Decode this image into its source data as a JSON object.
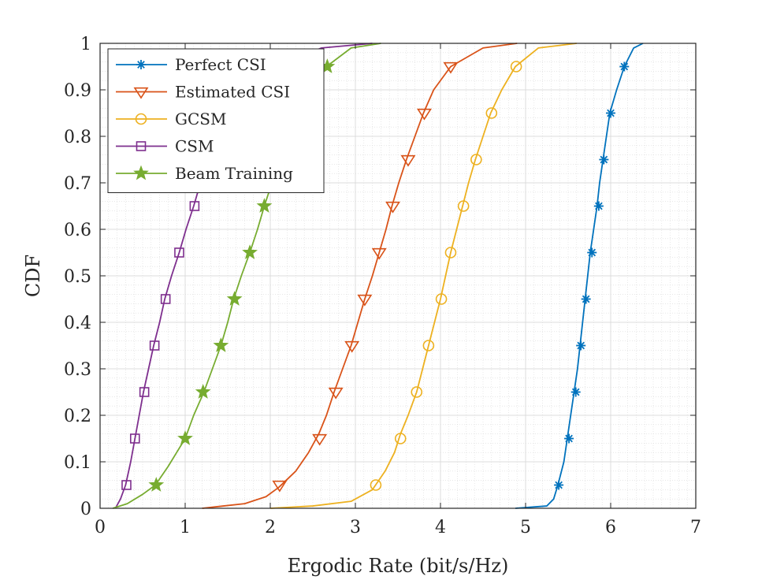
{
  "chart_data": {
    "type": "line",
    "title": "",
    "xlabel": "Ergodic Rate (bit/s/Hz)",
    "ylabel": "CDF",
    "xlim": [
      0,
      7
    ],
    "ylim": [
      0,
      1
    ],
    "x_ticks": [
      "0",
      "1",
      "2",
      "3",
      "4",
      "5",
      "6",
      "7"
    ],
    "y_ticks": [
      "0",
      "0.1",
      "0.2",
      "0.3",
      "0.4",
      "0.5",
      "0.6",
      "0.7",
      "0.8",
      "0.9",
      "1"
    ],
    "grid": true,
    "minor_grid": true,
    "legend_position": "top-left",
    "series": [
      {
        "name": "Perfect CSI",
        "color": "#0072BD",
        "marker": "asterisk",
        "points": [
          [
            4.88,
            0
          ],
          [
            5.25,
            0.005
          ],
          [
            5.33,
            0.02
          ],
          [
            5.38,
            0.05
          ],
          [
            5.45,
            0.1
          ],
          [
            5.49,
            0.15
          ],
          [
            5.53,
            0.2
          ],
          [
            5.57,
            0.25
          ],
          [
            5.61,
            0.3
          ],
          [
            5.64,
            0.35
          ],
          [
            5.67,
            0.4
          ],
          [
            5.7,
            0.45
          ],
          [
            5.73,
            0.5
          ],
          [
            5.76,
            0.55
          ],
          [
            5.8,
            0.6
          ],
          [
            5.84,
            0.65
          ],
          [
            5.87,
            0.7
          ],
          [
            5.91,
            0.75
          ],
          [
            5.95,
            0.8
          ],
          [
            5.99,
            0.85
          ],
          [
            6.07,
            0.9
          ],
          [
            6.16,
            0.95
          ],
          [
            6.27,
            0.99
          ],
          [
            6.38,
            1.0
          ]
        ],
        "markers": [
          [
            5.39,
            0.05
          ],
          [
            5.51,
            0.15
          ],
          [
            5.59,
            0.25
          ],
          [
            5.65,
            0.35
          ],
          [
            5.71,
            0.45
          ],
          [
            5.78,
            0.55
          ],
          [
            5.86,
            0.65
          ],
          [
            5.92,
            0.75
          ],
          [
            6.0,
            0.85
          ],
          [
            6.16,
            0.95
          ]
        ]
      },
      {
        "name": "Estimated CSI",
        "color": "#D95319",
        "marker": "triangle-down",
        "points": [
          [
            1.2,
            0
          ],
          [
            1.45,
            0.005
          ],
          [
            1.7,
            0.01
          ],
          [
            1.95,
            0.025
          ],
          [
            2.1,
            0.045
          ],
          [
            2.3,
            0.08
          ],
          [
            2.45,
            0.12
          ],
          [
            2.57,
            0.16
          ],
          [
            2.66,
            0.2
          ],
          [
            2.75,
            0.25
          ],
          [
            2.85,
            0.3
          ],
          [
            2.95,
            0.35
          ],
          [
            3.03,
            0.4
          ],
          [
            3.11,
            0.45
          ],
          [
            3.2,
            0.5
          ],
          [
            3.28,
            0.55
          ],
          [
            3.36,
            0.6
          ],
          [
            3.43,
            0.65
          ],
          [
            3.51,
            0.7
          ],
          [
            3.6,
            0.75
          ],
          [
            3.7,
            0.8
          ],
          [
            3.8,
            0.85
          ],
          [
            3.92,
            0.9
          ],
          [
            4.12,
            0.95
          ],
          [
            4.5,
            0.99
          ],
          [
            4.9,
            1.0
          ]
        ],
        "markers": [
          [
            2.11,
            0.05
          ],
          [
            2.58,
            0.15
          ],
          [
            2.77,
            0.25
          ],
          [
            2.96,
            0.35
          ],
          [
            3.11,
            0.45
          ],
          [
            3.28,
            0.55
          ],
          [
            3.44,
            0.65
          ],
          [
            3.62,
            0.75
          ],
          [
            3.81,
            0.85
          ],
          [
            4.12,
            0.95
          ]
        ]
      },
      {
        "name": "GCSM",
        "color": "#EDB120",
        "marker": "circle",
        "points": [
          [
            2.0,
            0
          ],
          [
            2.5,
            0.005
          ],
          [
            2.95,
            0.015
          ],
          [
            3.2,
            0.04
          ],
          [
            3.35,
            0.08
          ],
          [
            3.46,
            0.12
          ],
          [
            3.53,
            0.16
          ],
          [
            3.62,
            0.2
          ],
          [
            3.72,
            0.25
          ],
          [
            3.79,
            0.3
          ],
          [
            3.86,
            0.35
          ],
          [
            3.93,
            0.4
          ],
          [
            4.0,
            0.45
          ],
          [
            4.06,
            0.5
          ],
          [
            4.12,
            0.55
          ],
          [
            4.19,
            0.6
          ],
          [
            4.26,
            0.65
          ],
          [
            4.33,
            0.7
          ],
          [
            4.41,
            0.75
          ],
          [
            4.5,
            0.8
          ],
          [
            4.59,
            0.85
          ],
          [
            4.72,
            0.9
          ],
          [
            4.88,
            0.95
          ],
          [
            5.15,
            0.99
          ],
          [
            5.6,
            1.0
          ]
        ],
        "markers": [
          [
            3.24,
            0.05
          ],
          [
            3.53,
            0.15
          ],
          [
            3.72,
            0.25
          ],
          [
            3.86,
            0.35
          ],
          [
            4.01,
            0.45
          ],
          [
            4.12,
            0.55
          ],
          [
            4.27,
            0.65
          ],
          [
            4.42,
            0.75
          ],
          [
            4.6,
            0.85
          ],
          [
            4.89,
            0.95
          ]
        ]
      },
      {
        "name": "CSM",
        "color": "#7E2F8E",
        "marker": "square",
        "points": [
          [
            0.18,
            0
          ],
          [
            0.24,
            0.02
          ],
          [
            0.3,
            0.05
          ],
          [
            0.36,
            0.1
          ],
          [
            0.41,
            0.15
          ],
          [
            0.46,
            0.2
          ],
          [
            0.51,
            0.25
          ],
          [
            0.57,
            0.3
          ],
          [
            0.63,
            0.35
          ],
          [
            0.7,
            0.4
          ],
          [
            0.76,
            0.45
          ],
          [
            0.84,
            0.5
          ],
          [
            0.93,
            0.55
          ],
          [
            1.01,
            0.6
          ],
          [
            1.1,
            0.65
          ],
          [
            1.18,
            0.7
          ],
          [
            1.25,
            0.75
          ],
          [
            1.35,
            0.8
          ],
          [
            1.5,
            0.85
          ],
          [
            1.7,
            0.9
          ],
          [
            2.05,
            0.95
          ],
          [
            2.6,
            0.99
          ],
          [
            3.2,
            1.0
          ]
        ],
        "markers": [
          [
            0.31,
            0.05
          ],
          [
            0.41,
            0.15
          ],
          [
            0.52,
            0.25
          ],
          [
            0.64,
            0.35
          ],
          [
            0.77,
            0.45
          ],
          [
            0.93,
            0.55
          ],
          [
            1.11,
            0.65
          ]
        ]
      },
      {
        "name": "Beam Training",
        "color": "#77AC30",
        "marker": "pentagram",
        "points": [
          [
            0.15,
            0
          ],
          [
            0.32,
            0.01
          ],
          [
            0.5,
            0.03
          ],
          [
            0.65,
            0.05
          ],
          [
            0.8,
            0.09
          ],
          [
            0.9,
            0.12
          ],
          [
            1.0,
            0.15
          ],
          [
            1.1,
            0.2
          ],
          [
            1.22,
            0.25
          ],
          [
            1.32,
            0.3
          ],
          [
            1.42,
            0.35
          ],
          [
            1.5,
            0.4
          ],
          [
            1.57,
            0.45
          ],
          [
            1.66,
            0.5
          ],
          [
            1.76,
            0.55
          ],
          [
            1.85,
            0.6
          ],
          [
            1.93,
            0.65
          ],
          [
            2.02,
            0.7
          ],
          [
            2.12,
            0.75
          ],
          [
            2.22,
            0.8
          ],
          [
            2.33,
            0.85
          ],
          [
            2.45,
            0.9
          ],
          [
            2.66,
            0.95
          ],
          [
            2.95,
            0.99
          ],
          [
            3.3,
            1.0
          ]
        ],
        "markers": [
          [
            0.66,
            0.05
          ],
          [
            1.0,
            0.15
          ],
          [
            1.21,
            0.25
          ],
          [
            1.42,
            0.35
          ],
          [
            1.58,
            0.45
          ],
          [
            1.76,
            0.55
          ],
          [
            1.93,
            0.65
          ],
          [
            2.67,
            0.95
          ]
        ]
      }
    ]
  }
}
